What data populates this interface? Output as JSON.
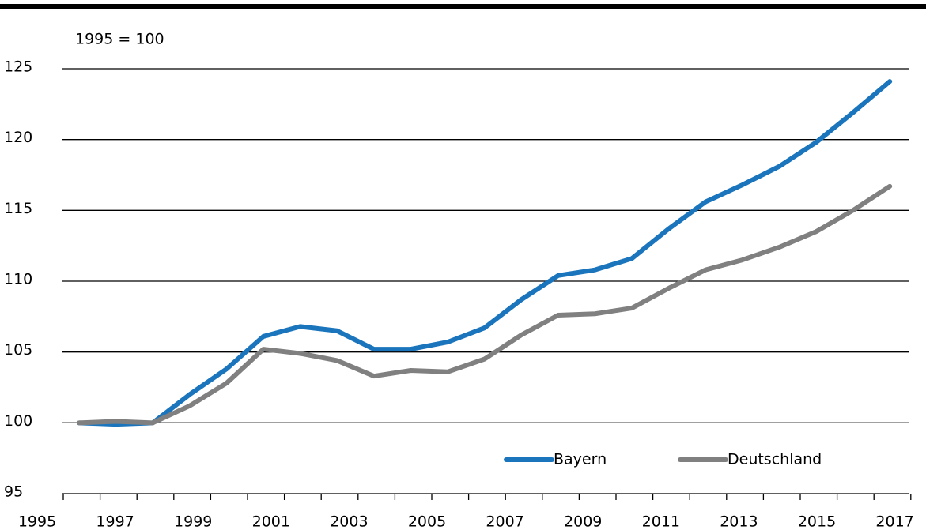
{
  "chart_data": {
    "type": "line",
    "annotation": "1995 = 100",
    "categories": [
      "1995",
      null,
      "1997",
      null,
      "1999",
      null,
      "2001",
      null,
      "2003",
      null,
      "2005",
      null,
      "2007",
      null,
      "2009",
      null,
      "2011",
      null,
      "2013",
      null,
      "2015",
      null,
      "2017"
    ],
    "series": [
      {
        "name": "Bayern",
        "color": "#1b75bc",
        "values": [
          100,
          99.9,
          100,
          102,
          103.8,
          106.1,
          106.8,
          106.5,
          105.2,
          105.2,
          105.7,
          106.7,
          108.7,
          110.4,
          110.8,
          111.6,
          113.7,
          115.6,
          116.8,
          118.1,
          119.8,
          121.9,
          124.1
        ]
      },
      {
        "name": "Deutschland",
        "color": "#808080",
        "values": [
          100,
          100.1,
          100,
          101.2,
          102.8,
          105.2,
          104.9,
          104.4,
          103.3,
          103.7,
          103.6,
          104.5,
          106.2,
          107.6,
          107.7,
          108.1,
          109.5,
          110.8,
          111.5,
          112.4,
          113.5,
          115,
          116.7
        ]
      }
    ],
    "ylim": [
      95,
      125
    ],
    "yticks": [
      95,
      100,
      105,
      110,
      115,
      120,
      125
    ],
    "grid": true,
    "legend": "bottom"
  }
}
